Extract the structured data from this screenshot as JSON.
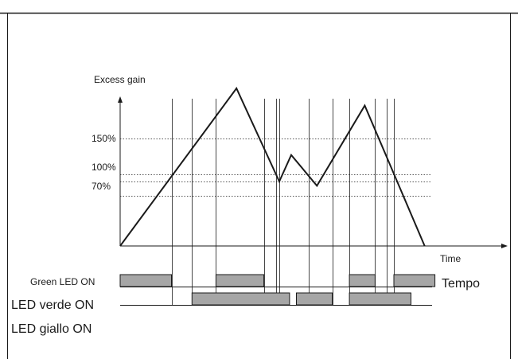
{
  "diagram": {
    "y_axis_label": "Excess gain",
    "x_axis_label": "Time",
    "x_axis_label_alt": "Tempo",
    "thresholds": [
      {
        "label": "150%",
        "value": 150
      },
      {
        "label": "100%",
        "value": 100
      },
      {
        "label": "70%",
        "value": 70
      }
    ],
    "hysteresis_value": 90,
    "signal": [
      {
        "t": 0,
        "gain": 0
      },
      {
        "t": 6.8,
        "gain": 220
      },
      {
        "t": 9.3,
        "gain": 90
      },
      {
        "t": 10.0,
        "gain": 127
      },
      {
        "t": 11.5,
        "gain": 84
      },
      {
        "t": 14.3,
        "gain": 196
      },
      {
        "t": 17.8,
        "gain": 0
      }
    ],
    "event_times": [
      3.0,
      4.2,
      5.6,
      8.4,
      9.1,
      9.3,
      11.0,
      12.4,
      13.4,
      14.9,
      15.6,
      16.0
    ],
    "led_rows": [
      {
        "label": "Green LED ON",
        "intervals": [
          [
            0,
            3.0
          ],
          [
            5.6,
            8.4
          ],
          [
            13.4,
            14.9
          ],
          [
            16.0,
            18.4
          ]
        ]
      },
      {
        "label": "LED verde ON",
        "intervals": [
          [
            4.2,
            9.9
          ],
          [
            10.3,
            12.4
          ],
          [
            13.4,
            17.0
          ]
        ]
      },
      {
        "label": "LED giallo ON",
        "intervals": []
      }
    ],
    "colors": {
      "bar_fill": "#a6a6a6",
      "line": "#1a1a1a",
      "threshold": "#555555"
    }
  }
}
